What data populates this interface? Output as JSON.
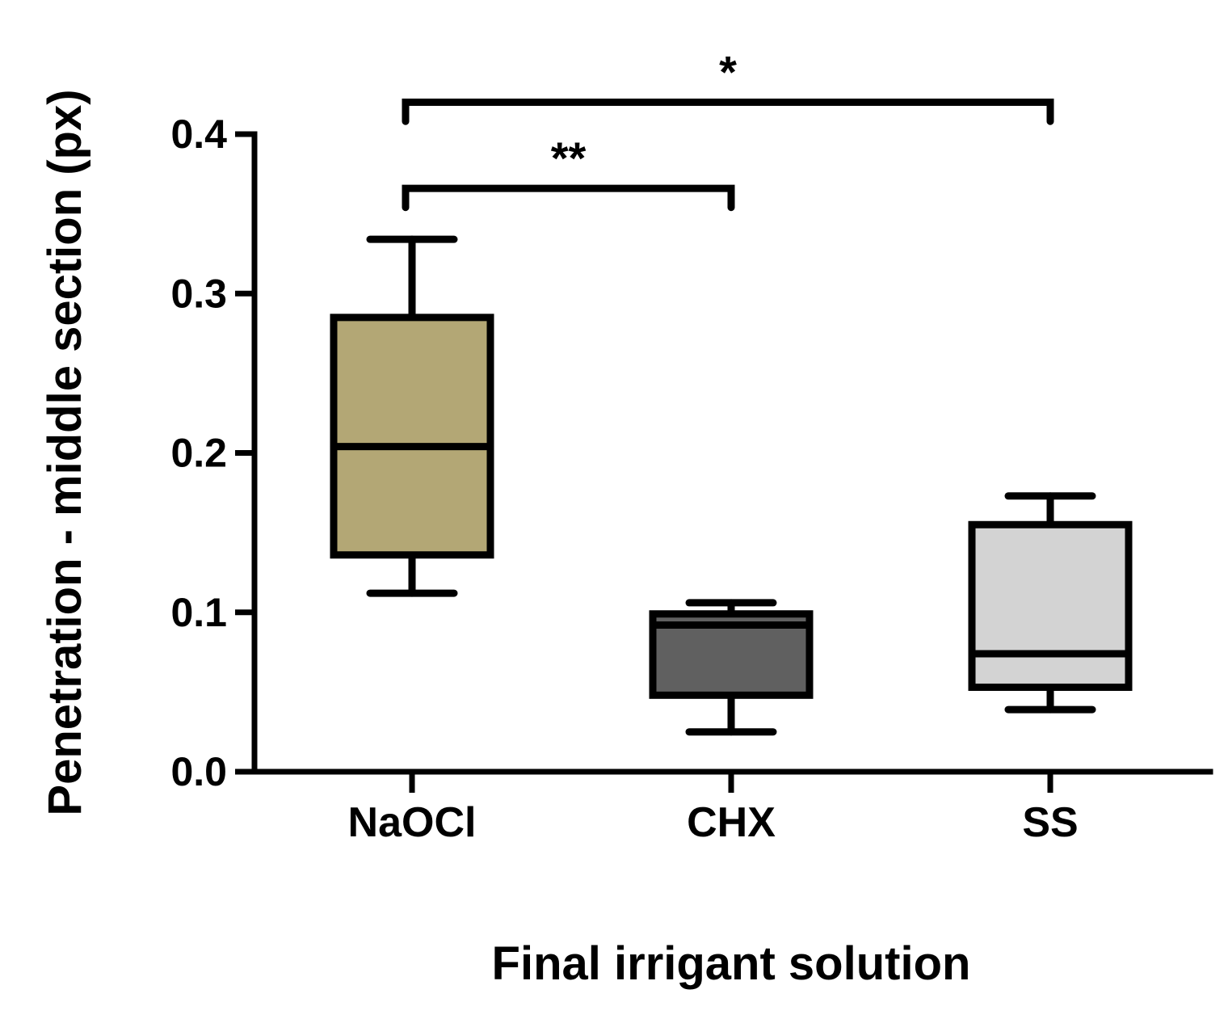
{
  "chart_data": {
    "type": "box",
    "xlabel": "Final irrigant solution",
    "ylabel": "Penetration - middle section (px)",
    "ylim": [
      0,
      0.4
    ],
    "yticks": [
      "0.0",
      "0.1",
      "0.2",
      "0.3",
      "0.4"
    ],
    "categories": [
      "NaOCl",
      "CHX",
      "SS"
    ],
    "boxes": [
      {
        "name": "NaOCl",
        "min": 0.112,
        "q1": 0.136,
        "median": 0.204,
        "q3": 0.285,
        "max": 0.334,
        "color": "#b3a775"
      },
      {
        "name": "CHX",
        "min": 0.025,
        "q1": 0.048,
        "median": 0.092,
        "q3": 0.099,
        "max": 0.106,
        "color": "#606060"
      },
      {
        "name": "SS",
        "min": 0.039,
        "q1": 0.053,
        "median": 0.074,
        "q3": 0.155,
        "max": 0.173,
        "color": "#d3d3d3"
      }
    ],
    "significance": [
      {
        "from": 0,
        "to": 1,
        "label": "**",
        "y": 0.366,
        "drop": 0.012
      },
      {
        "from": 0,
        "to": 2,
        "label": "*",
        "y": 0.42,
        "drop": 0.012
      }
    ],
    "grid": false,
    "legend": "none"
  }
}
